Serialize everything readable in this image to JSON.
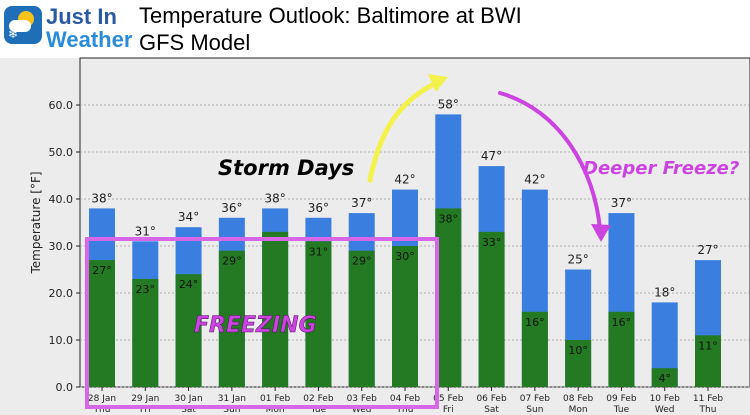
{
  "header": {
    "logo_line1": "Just In",
    "logo_line2": "Weather",
    "title": "Temperature Outlook: Baltimore at BWI",
    "subtitle": "GFS Model"
  },
  "colors": {
    "high": "#3a7fe0",
    "low": "#237a22",
    "annotation_pink": "#cc44e0",
    "arrow_yellow": "#f2f24a"
  },
  "annotations": {
    "storm": "Storm Days",
    "freeze": "Deeper Freeze?",
    "freezing": "FREEZING"
  },
  "chart_data": {
    "type": "bar",
    "ylabel": "Temperature [°F]",
    "ylim": [
      0,
      70
    ],
    "yticks": [
      "0.0",
      "10.0",
      "20.0",
      "30.0",
      "40.0",
      "50.0",
      "60.0"
    ],
    "grid": true,
    "categories": [
      [
        "28 Jan",
        "Thu"
      ],
      [
        "29 Jan",
        "Fri"
      ],
      [
        "30 Jan",
        "Sat"
      ],
      [
        "31 Jan",
        "Sun"
      ],
      [
        "01 Feb",
        "Mon"
      ],
      [
        "02 Feb",
        "Tue"
      ],
      [
        "03 Feb",
        "Wed"
      ],
      [
        "04 Feb",
        "Thu"
      ],
      [
        "05 Feb",
        "Fri"
      ],
      [
        "06 Feb",
        "Sat"
      ],
      [
        "07 Feb",
        "Sun"
      ],
      [
        "08 Feb",
        "Mon"
      ],
      [
        "09 Feb",
        "Tue"
      ],
      [
        "10 Feb",
        "Wed"
      ],
      [
        "11 Feb",
        "Thu"
      ]
    ],
    "series": [
      {
        "values": [
          38,
          31,
          34,
          36,
          38,
          36,
          37,
          42,
          58,
          47,
          42,
          25,
          37,
          18,
          27
        ]
      },
      {
        "values": [
          27,
          23,
          24,
          29,
          33,
          31,
          29,
          30,
          38,
          33,
          16,
          10,
          16,
          4,
          11
        ]
      }
    ],
    "high_labels": [
      "38°",
      "31°",
      "34°",
      "36°",
      "38°",
      "36°",
      "37°",
      "42°",
      "58°",
      "47°",
      "42°",
      "25°",
      "37°",
      "18°",
      "27°"
    ],
    "low_labels": [
      "27°",
      "23°",
      "24°",
      "29°",
      "",
      "31°",
      "29°",
      "30°",
      "38°",
      "33°",
      "16°",
      "10°",
      "16°",
      "4°",
      "11°"
    ]
  }
}
